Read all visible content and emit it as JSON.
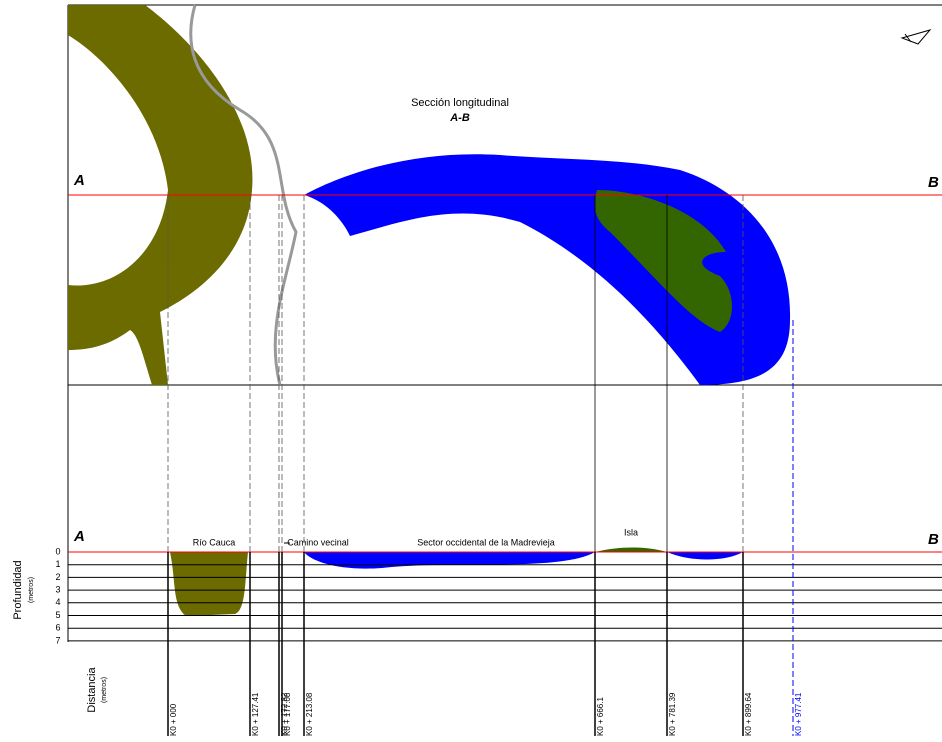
{
  "header": {
    "title": "Sección longitudinal",
    "subtitle": "A-B"
  },
  "plan": {
    "start": "A",
    "end": "B"
  },
  "profile": {
    "start": "A",
    "end": "B",
    "labels": [
      "Río Cauca",
      "Camino vecinal",
      "Sector occidental de la Madrevieja",
      "Isla"
    ]
  },
  "depth_axis": {
    "title": "Profundidad",
    "unit": "(metros)",
    "ticks": [
      0,
      1,
      2,
      3,
      4,
      5,
      6,
      7
    ]
  },
  "distance_axis": {
    "title": "Distancia",
    "unit": "(metros)",
    "stations": [
      "K0 + 000",
      "K0 + 127.41",
      "K0 + 172.82",
      "K0 + 177.08",
      "K0 + 213.08",
      "K0 + 666.1",
      "K0 + 781.39",
      "K0 + 899.64",
      "K0 + 977.41"
    ]
  }
}
